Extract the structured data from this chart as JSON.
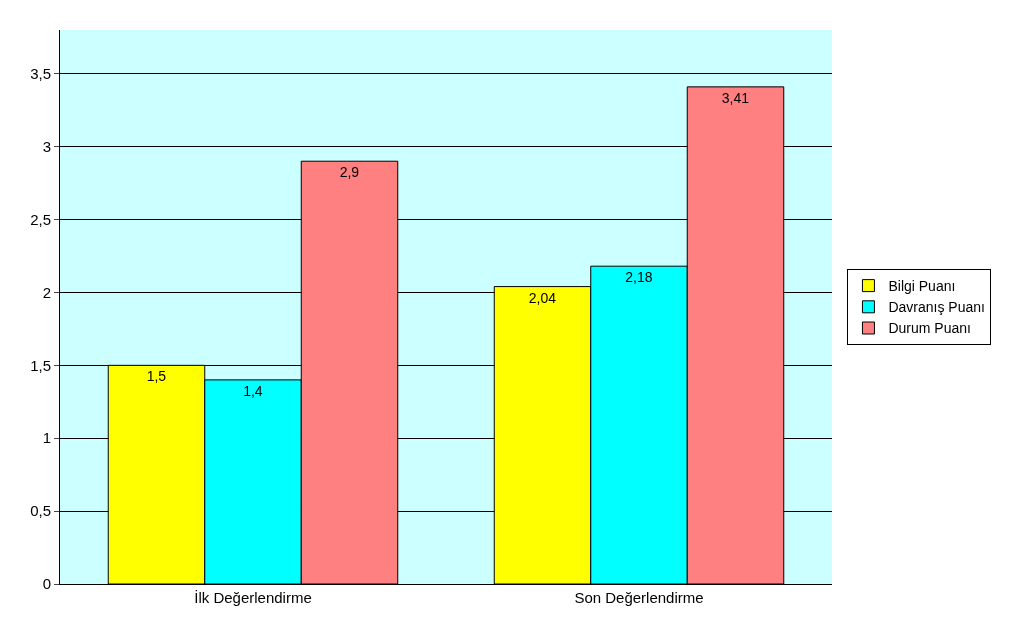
{
  "chart_data": {
    "type": "bar",
    "categories": [
      "İlk Değerlendirme",
      "Son Değerlendirme"
    ],
    "series": [
      {
        "name": "Bilgi Puanı",
        "color": "#ffff00",
        "values": [
          1.5,
          2.04
        ],
        "value_labels": [
          "1,5",
          "2,04"
        ]
      },
      {
        "name": "Davranış Puanı",
        "color": "#00ffff",
        "values": [
          1.4,
          2.18
        ],
        "value_labels": [
          "1,4",
          "2,18"
        ]
      },
      {
        "name": "Durum Puanı",
        "color": "#ff8080",
        "values": [
          2.9,
          3.41
        ],
        "value_labels": [
          "2,9",
          "3,41"
        ]
      }
    ],
    "ylim": [
      0,
      3.8
    ],
    "yticks": [
      0,
      {
        "value": 0.5,
        "label": "0,5"
      },
      1,
      {
        "value": 1.5,
        "label": "1,5"
      },
      2,
      {
        "value": 2.5,
        "label": "2,5"
      },
      3,
      {
        "value": 3.5,
        "label": "3,5"
      }
    ],
    "grid": "y",
    "legend": "right"
  }
}
